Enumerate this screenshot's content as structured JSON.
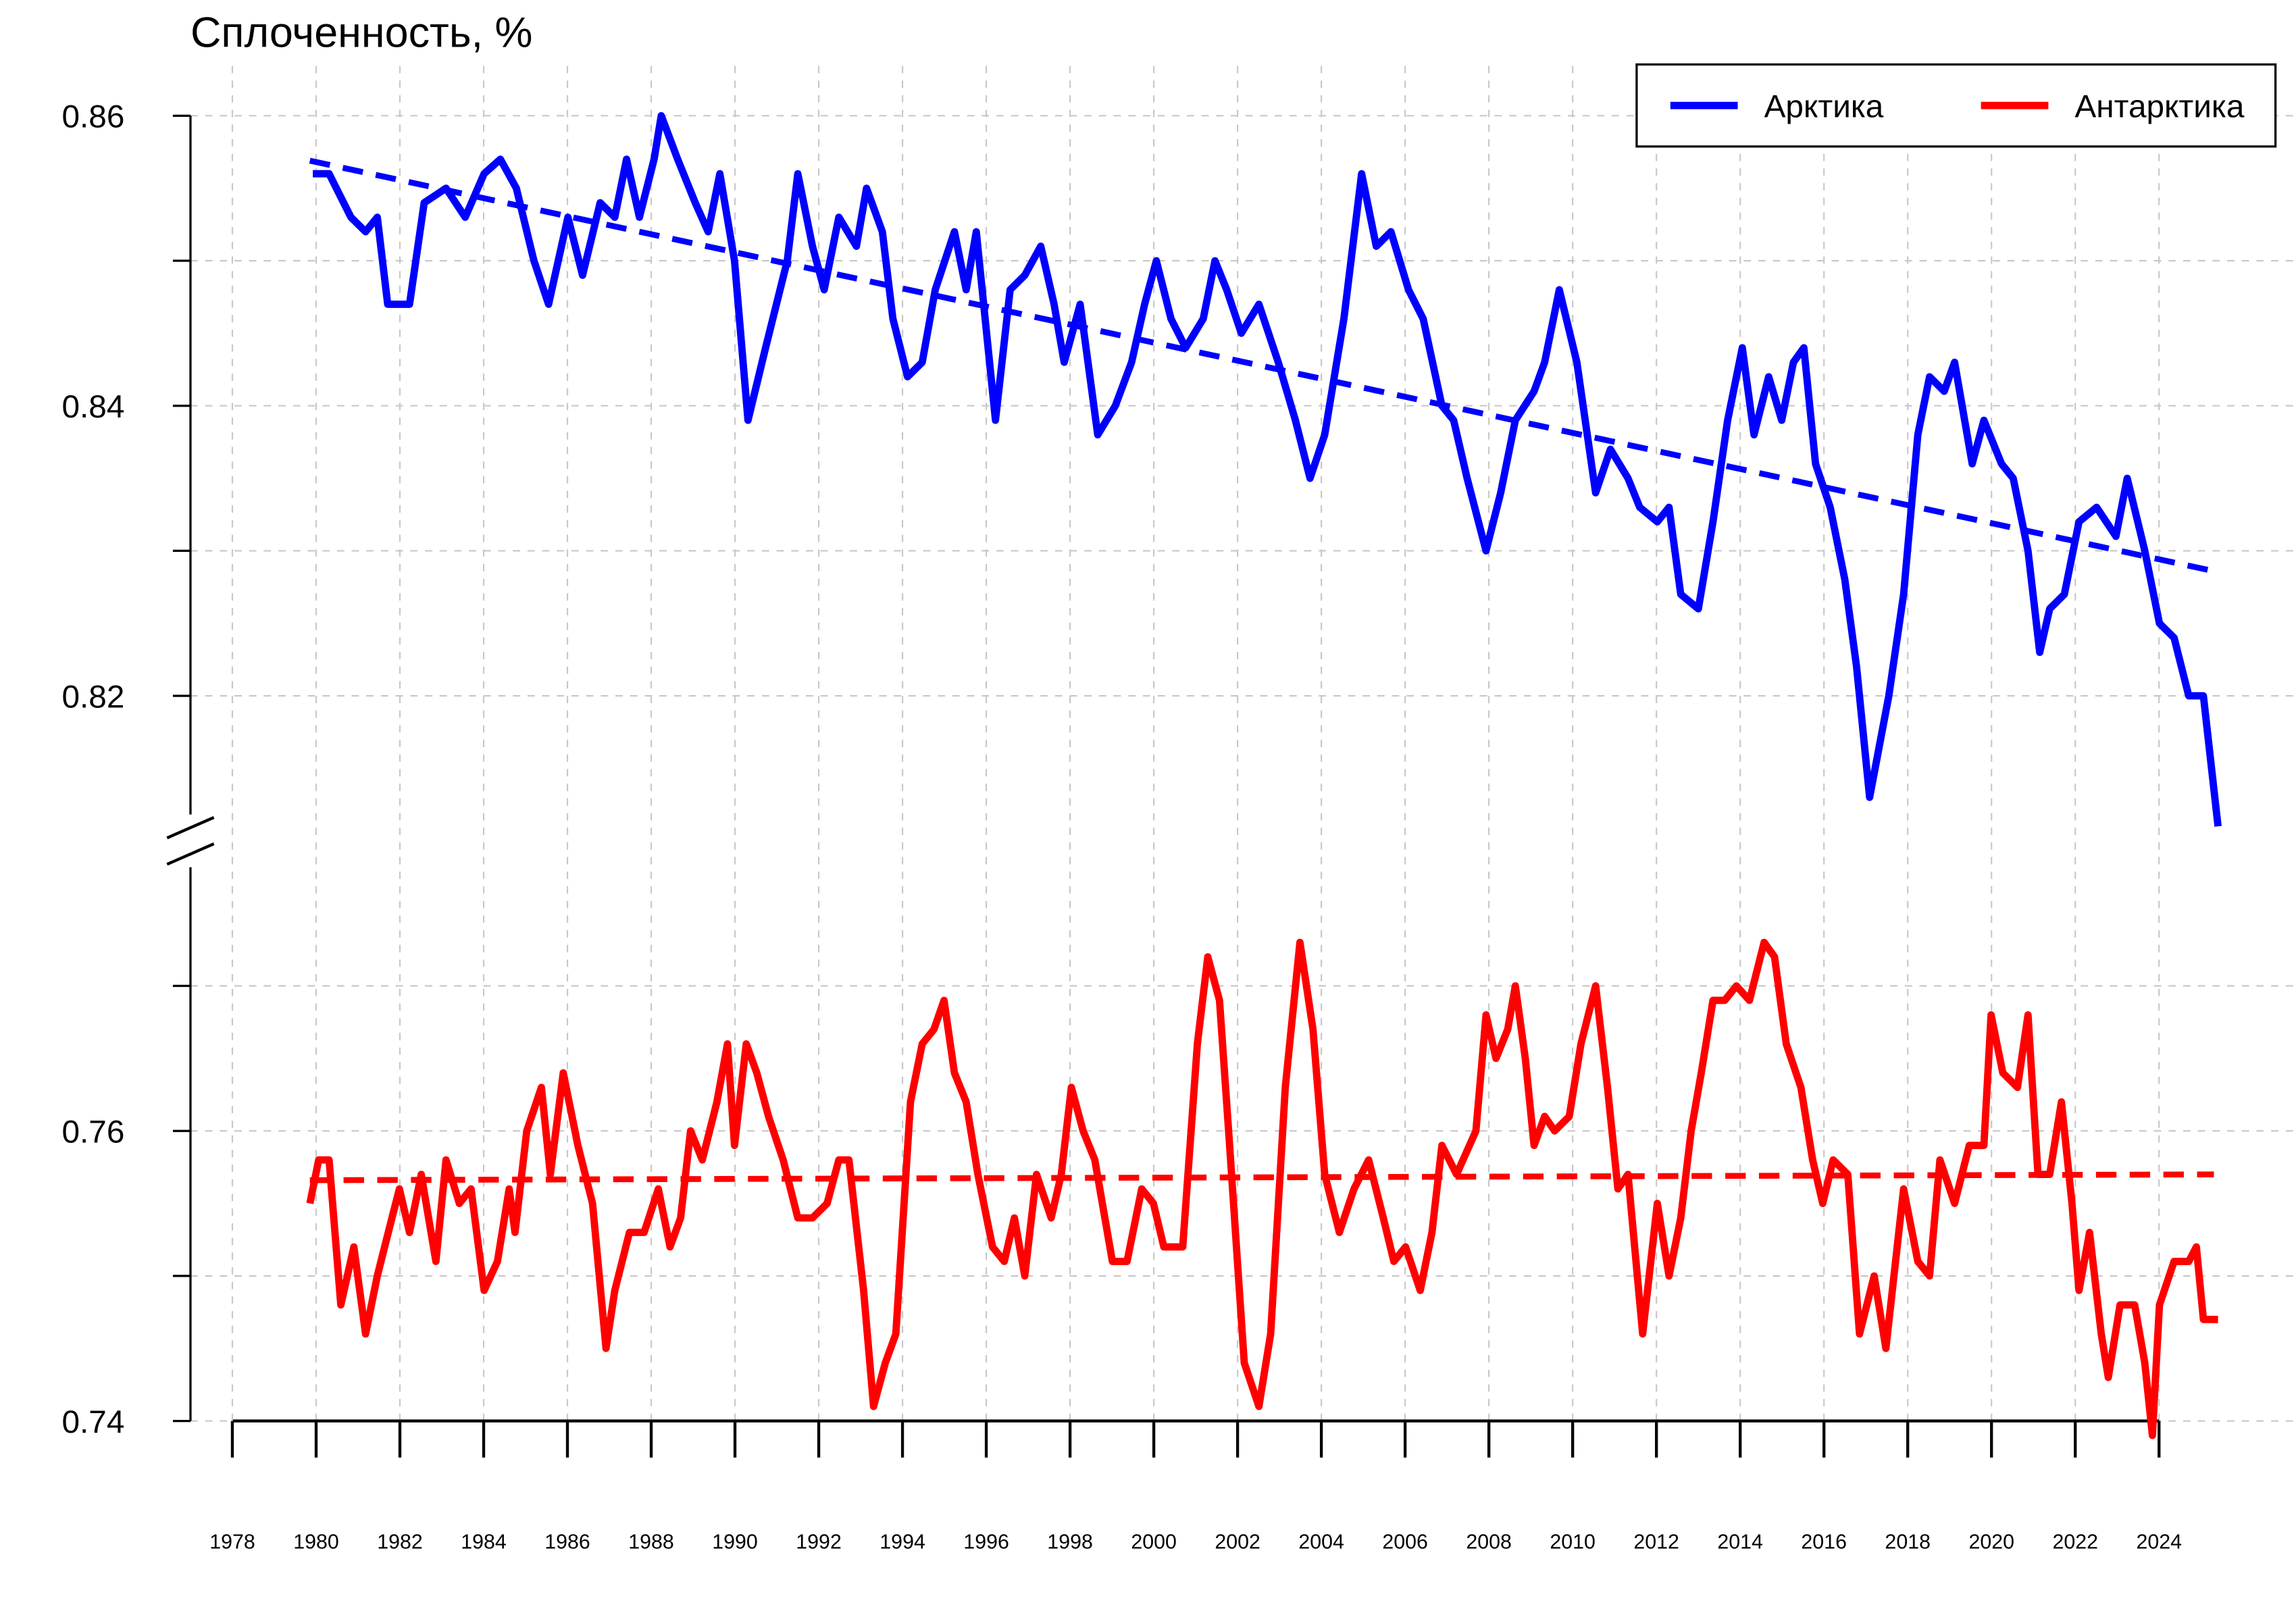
{
  "chart_data": {
    "type": "line",
    "title": "Сплоченность, %",
    "xlim": [
      1977.0,
      2027.2
    ],
    "xticks": [
      1978,
      1980,
      1982,
      1984,
      1986,
      1988,
      1990,
      1992,
      1994,
      1996,
      1998,
      2000,
      2002,
      2004,
      2006,
      2008,
      2010,
      2012,
      2014,
      2016,
      2018,
      2020,
      2022,
      2024
    ],
    "ylim": [
      0.74,
      0.86
    ],
    "ybreak": [
      0.78,
      0.81
    ],
    "yticks": [
      0.74,
      0.76,
      0.82,
      0.84,
      0.86
    ],
    "yminor_ticks": [
      0.75,
      0.77,
      0.83,
      0.85
    ],
    "grid": true,
    "legend": "top-right",
    "series": [
      {
        "name": "Арктика",
        "color": "#0000ff",
        "x": [
          1979.92,
          1980.31,
          1980.83,
          1981.18,
          1981.46,
          1981.71,
          1982.23,
          1982.58,
          1983.1,
          1983.56,
          1984.01,
          1984.4,
          1984.78,
          1985.2,
          1985.55,
          1986.01,
          1986.36,
          1986.78,
          1987.13,
          1987.41,
          1987.72,
          1988.07,
          1988.24,
          1988.63,
          1989.05,
          1989.36,
          1989.64,
          1989.99,
          1990.31,
          1990.73,
          1991.25,
          1991.5,
          1991.85,
          1992.13,
          1992.48,
          1992.9,
          1993.14,
          1993.52,
          1993.77,
          1994.12,
          1994.47,
          1994.78,
          1995.24,
          1995.52,
          1995.76,
          1996.22,
          1996.57,
          1996.92,
          1997.3,
          1997.62,
          1997.86,
          1998.24,
          1998.66,
          1999.08,
          1999.47,
          1999.78,
          2000.06,
          2000.41,
          2000.76,
          2001.18,
          2001.46,
          2001.74,
          2002.09,
          2002.51,
          2002.97,
          2003.38,
          2003.73,
          2004.08,
          2004.54,
          2004.96,
          2005.31,
          2005.66,
          2006.08,
          2006.43,
          2006.88,
          2007.16,
          2007.48,
          2007.93,
          2008.28,
          2008.63,
          2009.08,
          2009.33,
          2009.68,
          2010.1,
          2010.55,
          2010.9,
          2011.32,
          2011.6,
          2012.02,
          2012.3,
          2012.58,
          2013.0,
          2013.35,
          2013.7,
          2014.05,
          2014.33,
          2014.68,
          2014.99,
          2015.27,
          2015.52,
          2015.8,
          2016.15,
          2016.5,
          2016.78,
          2017.09,
          2017.55,
          2017.9,
          2018.24,
          2018.52,
          2018.87,
          2019.12,
          2019.54,
          2019.82,
          2020.24,
          2020.52,
          2020.87,
          2021.15,
          2021.39,
          2021.74,
          2022.09,
          2022.51,
          2022.97,
          2023.24,
          2023.66,
          2024.01,
          2024.36,
          2024.71,
          2025.06,
          2025.41
        ],
        "values": [
          0.856,
          0.856,
          0.853,
          0.852,
          0.853,
          0.847,
          0.847,
          0.854,
          0.855,
          0.853,
          0.856,
          0.857,
          0.855,
          0.85,
          0.847,
          0.853,
          0.849,
          0.854,
          0.853,
          0.857,
          0.853,
          0.857,
          0.86,
          0.857,
          0.854,
          0.852,
          0.856,
          0.85,
          0.839,
          0.844,
          0.85,
          0.856,
          0.851,
          0.848,
          0.853,
          0.851,
          0.855,
          0.852,
          0.846,
          0.842,
          0.843,
          0.848,
          0.852,
          0.848,
          0.852,
          0.839,
          0.848,
          0.849,
          0.851,
          0.847,
          0.843,
          0.847,
          0.838,
          0.84,
          0.843,
          0.847,
          0.85,
          0.846,
          0.844,
          0.846,
          0.85,
          0.848,
          0.845,
          0.847,
          0.843,
          0.839,
          0.835,
          0.838,
          0.846,
          0.856,
          0.851,
          0.852,
          0.848,
          0.846,
          0.84,
          0.839,
          0.835,
          0.83,
          0.834,
          0.839,
          0.841,
          0.843,
          0.848,
          0.843,
          0.834,
          0.837,
          0.835,
          0.833,
          0.832,
          0.833,
          0.827,
          0.826,
          0.832,
          0.839,
          0.844,
          0.838,
          0.842,
          0.839,
          0.843,
          0.844,
          0.836,
          0.833,
          0.828,
          0.822,
          0.813,
          0.82,
          0.827,
          0.838,
          0.842,
          0.841,
          0.843,
          0.836,
          0.839,
          0.836,
          0.835,
          0.83,
          0.823,
          0.826,
          0.827,
          0.832,
          0.833,
          0.831,
          0.835,
          0.83,
          0.825,
          0.824,
          0.82,
          0.82,
          0.811
        ],
        "trend": {
          "x": [
            1979.85,
            2025.31
          ],
          "values": [
            0.8569,
            0.8286
          ]
        }
      },
      {
        "name": "Антарктика",
        "color": "#ff0000",
        "x": [
          1979.85,
          1980.06,
          1980.31,
          1980.59,
          1980.9,
          1981.18,
          1981.46,
          1981.81,
          1981.99,
          1982.23,
          1982.51,
          1982.86,
          1983.1,
          1983.42,
          1983.7,
          1984.01,
          1984.33,
          1984.61,
          1984.75,
          1985.03,
          1985.38,
          1985.59,
          1985.9,
          1986.25,
          1986.6,
          1986.92,
          1987.13,
          1987.48,
          1987.83,
          1988.17,
          1988.45,
          1988.7,
          1988.94,
          1989.22,
          1989.57,
          1989.82,
          1989.99,
          1990.27,
          1990.52,
          1990.8,
          1991.15,
          1991.5,
          1991.85,
          1992.2,
          1992.48,
          1992.72,
          1993.07,
          1993.31,
          1993.59,
          1993.84,
          1994.19,
          1994.47,
          1994.75,
          1994.99,
          1995.24,
          1995.52,
          1995.8,
          1996.15,
          1996.43,
          1996.67,
          1996.92,
          1997.2,
          1997.55,
          1997.79,
          1998.03,
          1998.31,
          1998.59,
          1999.01,
          1999.36,
          1999.71,
          1999.99,
          2000.24,
          2000.69,
          2001.04,
          2001.29,
          2001.57,
          2001.81,
          2002.16,
          2002.51,
          2002.79,
          2003.14,
          2003.49,
          2003.8,
          2004.08,
          2004.43,
          2004.78,
          2005.13,
          2005.48,
          2005.73,
          2006.01,
          2006.36,
          2006.64,
          2006.88,
          2007.23,
          2007.69,
          2007.93,
          2008.17,
          2008.45,
          2008.63,
          2008.87,
          2009.08,
          2009.33,
          2009.57,
          2009.92,
          2010.2,
          2010.55,
          2010.83,
          2011.08,
          2011.32,
          2011.67,
          2012.02,
          2012.3,
          2012.58,
          2012.83,
          2013.07,
          2013.35,
          2013.63,
          2013.91,
          2014.22,
          2014.57,
          2014.82,
          2015.1,
          2015.45,
          2015.73,
          2015.97,
          2016.22,
          2016.57,
          2016.85,
          2017.2,
          2017.48,
          2017.9,
          2018.24,
          2018.52,
          2018.77,
          2019.12,
          2019.47,
          2019.82,
          2019.99,
          2020.27,
          2020.62,
          2020.87,
          2021.11,
          2021.39,
          2021.67,
          2021.92,
          2022.09,
          2022.34,
          2022.62,
          2022.79,
          2023.07,
          2023.42,
          2023.66,
          2023.84,
          2024.01,
          2024.36,
          2024.71,
          2024.89,
          2025.06,
          2025.41
        ],
        "values": [
          0.755,
          0.758,
          0.758,
          0.748,
          0.752,
          0.746,
          0.75,
          0.754,
          0.756,
          0.753,
          0.757,
          0.751,
          0.758,
          0.755,
          0.756,
          0.749,
          0.751,
          0.756,
          0.753,
          0.76,
          0.763,
          0.757,
          0.764,
          0.759,
          0.755,
          0.745,
          0.749,
          0.753,
          0.753,
          0.756,
          0.752,
          0.754,
          0.76,
          0.758,
          0.762,
          0.766,
          0.759,
          0.766,
          0.764,
          0.761,
          0.758,
          0.754,
          0.754,
          0.755,
          0.758,
          0.758,
          0.749,
          0.741,
          0.744,
          0.746,
          0.762,
          0.766,
          0.767,
          0.769,
          0.764,
          0.762,
          0.757,
          0.752,
          0.751,
          0.754,
          0.75,
          0.757,
          0.754,
          0.757,
          0.763,
          0.76,
          0.758,
          0.751,
          0.751,
          0.756,
          0.755,
          0.752,
          0.752,
          0.766,
          0.772,
          0.769,
          0.759,
          0.744,
          0.741,
          0.746,
          0.763,
          0.773,
          0.767,
          0.757,
          0.753,
          0.756,
          0.758,
          0.754,
          0.751,
          0.752,
          0.749,
          0.753,
          0.759,
          0.757,
          0.76,
          0.768,
          0.765,
          0.767,
          0.77,
          0.765,
          0.759,
          0.761,
          0.76,
          0.761,
          0.766,
          0.77,
          0.763,
          0.756,
          0.757,
          0.746,
          0.755,
          0.75,
          0.754,
          0.76,
          0.764,
          0.769,
          0.769,
          0.77,
          0.769,
          0.773,
          0.772,
          0.766,
          0.763,
          0.758,
          0.755,
          0.758,
          0.757,
          0.746,
          0.75,
          0.745,
          0.756,
          0.751,
          0.75,
          0.758,
          0.755,
          0.759,
          0.759,
          0.768,
          0.764,
          0.763,
          0.768,
          0.757,
          0.757,
          0.762,
          0.755,
          0.749,
          0.753,
          0.746,
          0.743,
          0.748,
          0.748,
          0.744,
          0.739,
          0.748,
          0.751,
          0.751,
          0.752,
          0.747,
          0.747
        ],
        "trend": {
          "x": [
            1979.85,
            2025.31
          ],
          "values": [
            0.7566,
            0.757
          ]
        }
      }
    ]
  }
}
